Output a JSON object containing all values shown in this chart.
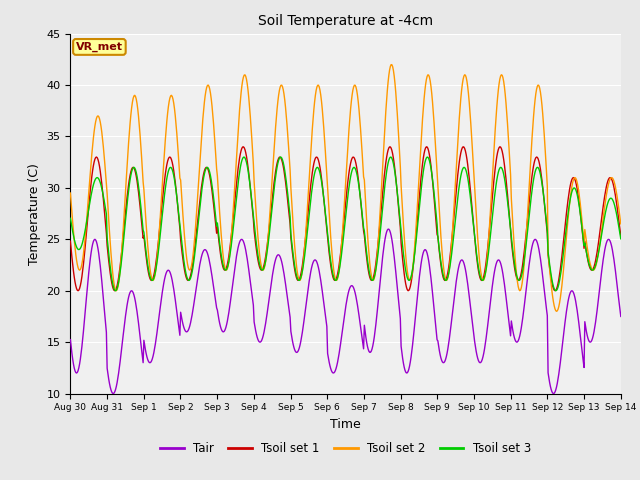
{
  "title": "Soil Temperature at -4cm",
  "xlabel": "Time",
  "ylabel": "Temperature (C)",
  "ylim": [
    10,
    45
  ],
  "annotation": "VR_met",
  "colors": {
    "Tair": "#9900cc",
    "Tsoil1": "#cc0000",
    "Tsoil2": "#ff9900",
    "Tsoil3": "#00cc00"
  },
  "legend_labels": [
    "Tair",
    "Tsoil set 1",
    "Tsoil set 2",
    "Tsoil set 3"
  ],
  "bg_color": "#e8e8e8",
  "plot_bg": "#f0f0f0",
  "tick_labels": [
    "Aug 30",
    "Aug 31",
    "Sep 1",
    "Sep 2",
    "Sep 3",
    "Sep 4",
    "Sep 5",
    "Sep 6",
    "Sep 7",
    "Sep 8",
    "Sep 9",
    "Sep 10",
    "Sep 11",
    "Sep 12",
    "Sep 13",
    "Sep 14"
  ],
  "yticks": [
    10,
    15,
    20,
    25,
    30,
    35,
    40,
    45
  ],
  "tair_min": [
    12,
    10,
    13,
    16,
    16,
    15,
    14,
    12,
    14,
    12,
    13,
    13,
    15,
    10,
    15
  ],
  "tair_amp": [
    13,
    10,
    9,
    8,
    9,
    8.5,
    9,
    8.5,
    12,
    12,
    10,
    10,
    10,
    10,
    10
  ],
  "tsoil1_min": [
    20,
    20,
    21,
    21,
    22,
    22,
    21,
    21,
    21,
    20,
    21,
    21,
    21,
    20,
    22
  ],
  "tsoil1_amp": [
    13,
    12,
    12,
    11,
    12,
    11,
    12,
    12,
    13,
    14,
    13,
    13,
    12,
    11,
    9
  ],
  "tsoil2_min": [
    22,
    20,
    21,
    22,
    22,
    22,
    21,
    21,
    21,
    21,
    21,
    21,
    20,
    18,
    22
  ],
  "tsoil2_amp": [
    15,
    19,
    18,
    18,
    19,
    18,
    19,
    19,
    21,
    20,
    20,
    20,
    20,
    13,
    9
  ],
  "tsoil3_min": [
    24,
    20,
    21,
    21,
    22,
    22,
    21,
    21,
    21,
    21,
    21,
    21,
    21,
    20,
    22
  ],
  "tsoil3_amp": [
    7,
    12,
    11,
    11,
    11,
    11,
    11,
    11,
    12,
    12,
    11,
    11,
    11,
    10,
    7
  ],
  "tair_phase": 0.1667,
  "tsoil1_phase": 0.2083,
  "tsoil2_phase": 0.25,
  "tsoil3_phase": 0.2292
}
